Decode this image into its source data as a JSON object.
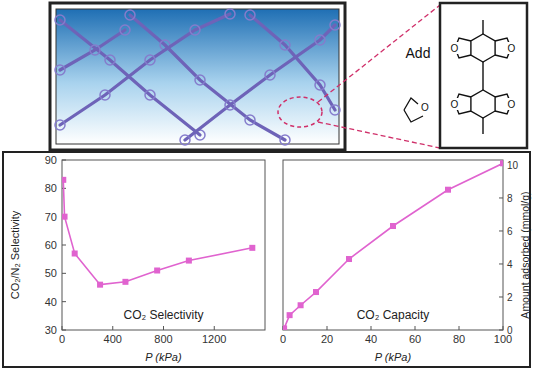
{
  "chart_data": [
    {
      "type": "line",
      "color": "#e063cf",
      "marker": "square",
      "ylabel": "CO₂/N₂ Selectivity",
      "xlabel": "P (kPa)",
      "annotation": "CO₂ Selectivity",
      "x": [
        10,
        20,
        100,
        300,
        500,
        750,
        1000,
        1500
      ],
      "values": [
        83,
        70,
        57,
        46,
        47,
        51,
        54.5,
        59
      ],
      "xlim": [
        0,
        1600
      ],
      "ylim": [
        30,
        90
      ],
      "xticks": [
        0,
        400,
        800,
        1200
      ],
      "yticks": [
        30,
        40,
        50,
        60,
        70,
        80,
        90
      ],
      "grid": false
    },
    {
      "type": "line",
      "color": "#e063cf",
      "marker": "square",
      "ylabel": "Amount adsorbed (mmol/g)",
      "xlabel": "P (kPa)",
      "annotation": "CO₂ Capacity",
      "x": [
        0.5,
        3,
        8,
        15,
        30,
        50,
        75,
        100
      ],
      "values": [
        0.1,
        0.9,
        1.5,
        2.3,
        4.3,
        6.3,
        8.5,
        10.1
      ],
      "xlim": [
        0,
        100
      ],
      "ylim": [
        0,
        10.3
      ],
      "xticks": [
        0,
        20,
        40,
        60,
        80,
        100
      ],
      "yticks": [
        0,
        2,
        4,
        6,
        8,
        10
      ],
      "grid": false
    }
  ],
  "inset": {
    "label": "Add",
    "atom_label": "O"
  }
}
